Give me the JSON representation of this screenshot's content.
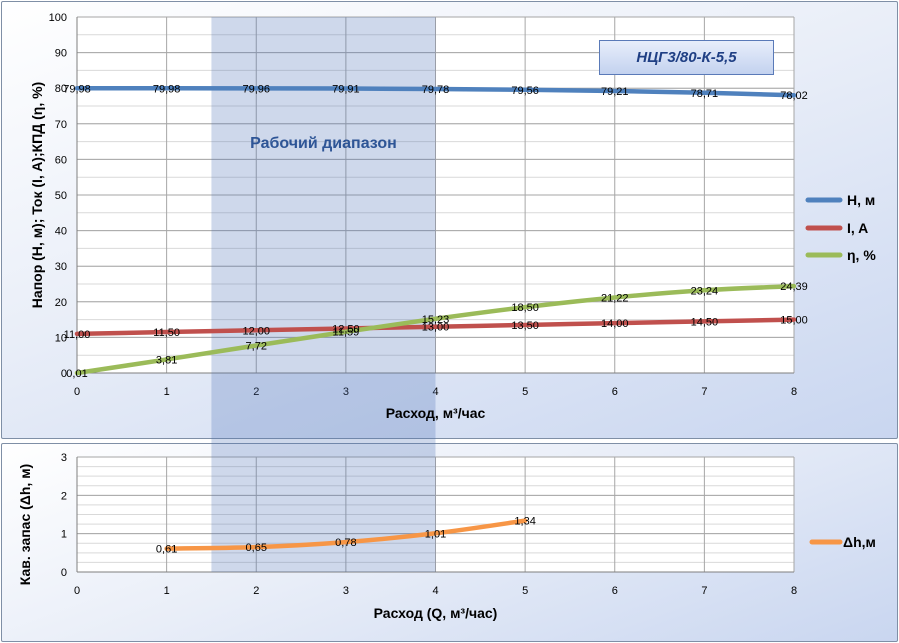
{
  "model": "НЦГ3/80-К-5,5",
  "range_label": "Рабочий диапазон",
  "top_chart": {
    "ylabel": "Напор (Н, м); Ток  (I, A);КПД (η, %)",
    "xlabel": "Расход, м³/час",
    "xlim": [
      0,
      8
    ],
    "ylim": [
      0,
      100
    ],
    "xticks": [
      "0",
      "1",
      "2",
      "3",
      "4",
      "5",
      "6",
      "7",
      "8"
    ],
    "yticks": [
      "0",
      "10",
      "20",
      "30",
      "40",
      "50",
      "60",
      "70",
      "80",
      "90",
      "100"
    ]
  },
  "bottom_chart": {
    "ylabel": "Кав. запас (Δh, м)",
    "xlabel": "Расход (Q, м³/час)",
    "xlim": [
      0,
      8
    ],
    "ylim": [
      0,
      3
    ],
    "xticks": [
      "0",
      "1",
      "2",
      "3",
      "4",
      "5",
      "6",
      "7",
      "8"
    ],
    "yticks": [
      "0",
      "1",
      "2",
      "3"
    ]
  },
  "chart_data": [
    {
      "type": "line",
      "xlabel": "Расход, м³/час",
      "ylabel": "Напор (Н, м); Ток  (I, A);КПД (η, %)",
      "xlim": [
        0,
        8
      ],
      "ylim": [
        0,
        100
      ],
      "grid": true,
      "legend": "right",
      "shaded_range": [
        1.5,
        4
      ],
      "x": [
        0,
        1,
        2,
        3,
        4,
        5,
        6,
        7,
        8
      ],
      "series": [
        {
          "name": "Н, м",
          "color": "#4f81bd",
          "values": [
            79.98,
            79.98,
            79.96,
            79.91,
            79.78,
            79.56,
            79.21,
            78.71,
            78.02
          ],
          "labels": [
            "79,98",
            "79,98",
            "79,96",
            "79,91",
            "79,78",
            "79,56",
            "79,21",
            "78,71",
            "78,02"
          ]
        },
        {
          "name": "I, A",
          "color": "#c0504d",
          "values": [
            11.0,
            11.5,
            12.0,
            12.5,
            13.0,
            13.5,
            14.0,
            14.5,
            15.0
          ],
          "labels": [
            "11,00",
            "11,50",
            "12,00",
            "12,50",
            "13,00",
            "13,50",
            "14,00",
            "14,50",
            "15,00"
          ]
        },
        {
          "name": "η, %",
          "color": "#9bbb59",
          "values": [
            0.01,
            3.81,
            7.72,
            11.59,
            15.23,
            18.5,
            21.22,
            23.24,
            24.39
          ],
          "labels": [
            "0,01",
            "3,81",
            "7,72",
            "11,59",
            "15,23",
            "18,50",
            "21,22",
            "23,24",
            "24,39"
          ]
        }
      ]
    },
    {
      "type": "line",
      "xlabel": "Расход (Q, м³/час)",
      "ylabel": "Кав. запас (Δh, м)",
      "xlim": [
        0,
        8
      ],
      "ylim": [
        0,
        3
      ],
      "grid": true,
      "legend": "right",
      "shaded_range": [
        1.5,
        4
      ],
      "x": [
        1,
        2,
        3,
        4,
        5
      ],
      "series": [
        {
          "name": "Δh,м",
          "color": "#f79646",
          "values": [
            0.61,
            0.65,
            0.78,
            1.01,
            1.34
          ],
          "labels": [
            "0,61",
            "0,65",
            "0,78",
            "1,01",
            "1,34"
          ]
        }
      ]
    }
  ]
}
